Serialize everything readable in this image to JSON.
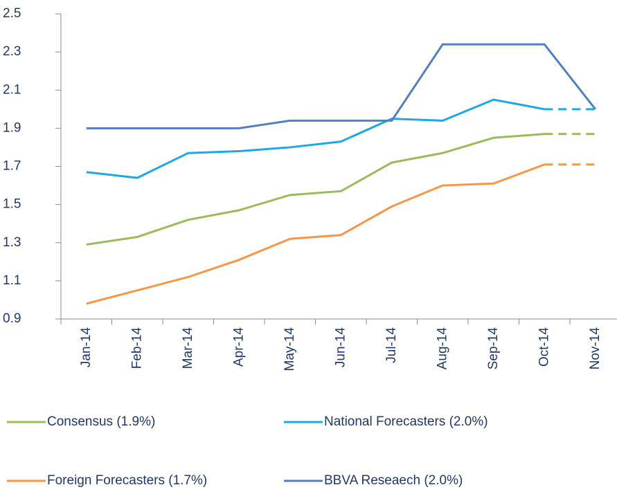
{
  "chart_data": {
    "type": "line",
    "categories": [
      "Jan-14",
      "Feb-14",
      "Mar-14",
      "Apr-14",
      "May-14",
      "Jun-14",
      "Jul-14",
      "Aug-14",
      "Sep-14",
      "Oct-14",
      "Nov-14"
    ],
    "series": [
      {
        "name": "Consensus (1.9%)",
        "color": "#9bbb59",
        "dashed_last_segment": true,
        "values": [
          1.29,
          1.33,
          1.42,
          1.47,
          1.55,
          1.57,
          1.72,
          1.77,
          1.85,
          1.87,
          1.87
        ]
      },
      {
        "name": "National Forecasters (2.0%)",
        "color": "#1aa9e6",
        "dashed_last_segment": true,
        "values": [
          1.67,
          1.64,
          1.77,
          1.78,
          1.8,
          1.83,
          1.95,
          1.94,
          2.05,
          2.0,
          2.0
        ]
      },
      {
        "name": "Foreign Forecasters (1.7%)",
        "color": "#f79646",
        "dashed_last_segment": true,
        "values": [
          0.98,
          1.05,
          1.12,
          1.21,
          1.32,
          1.34,
          1.49,
          1.6,
          1.61,
          1.71,
          1.71
        ]
      },
      {
        "name": "BBVA Reseaech (2.0%)",
        "color": "#5080bd",
        "dashed_last_segment": false,
        "values": [
          1.9,
          1.9,
          1.9,
          1.9,
          1.94,
          1.94,
          1.94,
          2.34,
          2.34,
          2.34,
          2.0
        ]
      }
    ],
    "ylim": [
      0.9,
      2.5
    ],
    "yticks": [
      0.9,
      1.1,
      1.3,
      1.5,
      1.7,
      1.9,
      2.1,
      2.3,
      2.5
    ],
    "grid": false
  }
}
